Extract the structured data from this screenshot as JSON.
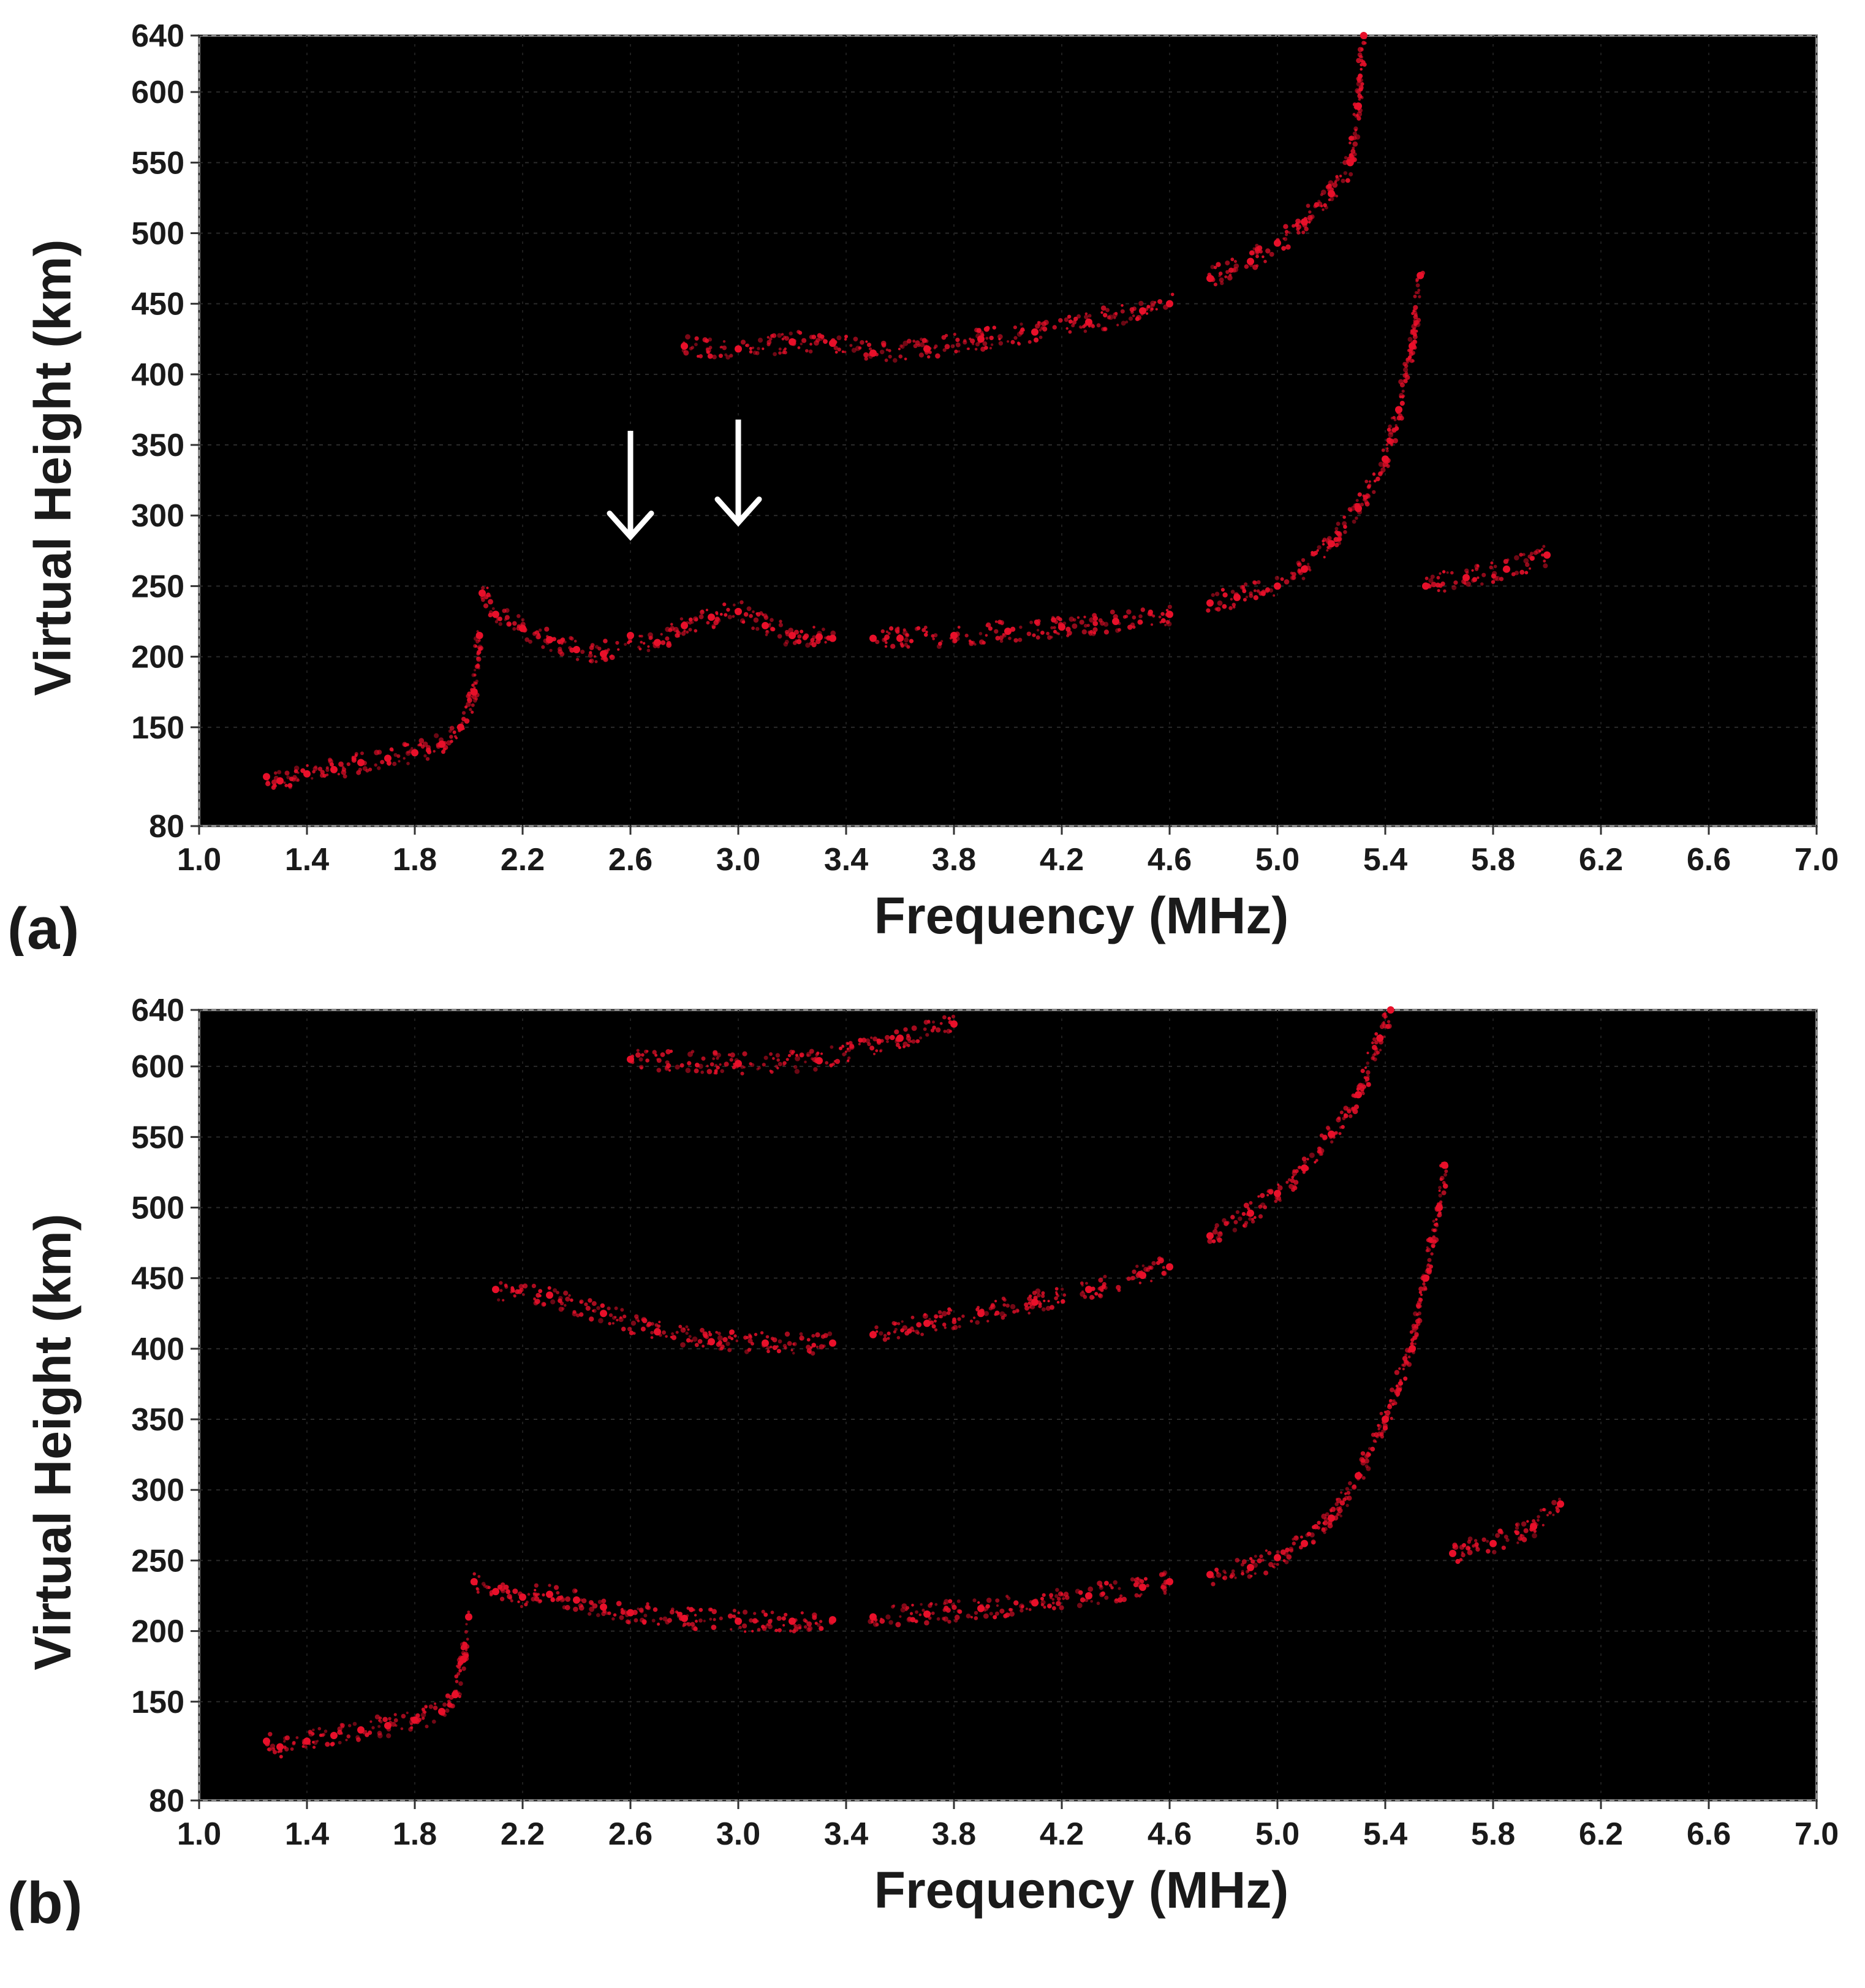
{
  "chart_data": [
    {
      "type": "scatter",
      "panel_label": "(a)",
      "xlabel": "Frequency (MHz)",
      "ylabel": "Virtual Height (km)",
      "xlim": [
        1.0,
        7.0
      ],
      "ylim": [
        80,
        640
      ],
      "xticks": [
        "1.0",
        "1.4",
        "1.8",
        "2.2",
        "2.6",
        "3.0",
        "3.4",
        "3.8",
        "4.2",
        "4.6",
        "5.0",
        "5.4",
        "5.8",
        "6.2",
        "6.6",
        "7.0"
      ],
      "yticks": [
        "80",
        "150",
        "200",
        "250",
        "300",
        "350",
        "400",
        "450",
        "500",
        "550",
        "600",
        "640"
      ],
      "background": "#000000",
      "point_color": "#e8102a",
      "grid": true,
      "annotations": [
        {
          "type": "arrow",
          "x": 2.6,
          "y_from": 360,
          "y_to": 285
        },
        {
          "type": "arrow",
          "x": 3.0,
          "y_from": 368,
          "y_to": 295
        }
      ],
      "series": [
        {
          "values": [
            [
              1.25,
              115
            ],
            [
              1.3,
              112
            ],
            [
              1.4,
              117
            ],
            [
              1.5,
              120
            ],
            [
              1.6,
              125
            ],
            [
              1.7,
              128
            ],
            [
              1.8,
              132
            ],
            [
              1.9,
              138
            ],
            [
              1.97,
              150
            ],
            [
              2.02,
              175
            ],
            [
              2.04,
              215
            ]
          ]
        },
        {
          "values": [
            [
              2.05,
              245
            ],
            [
              2.1,
              230
            ],
            [
              2.2,
              220
            ],
            [
              2.3,
              212
            ],
            [
              2.4,
              205
            ],
            [
              2.5,
              202
            ],
            [
              2.6,
              215
            ],
            [
              2.7,
              210
            ],
            [
              2.8,
              222
            ],
            [
              2.9,
              228
            ],
            [
              3.0,
              232
            ],
            [
              3.1,
              222
            ],
            [
              3.2,
              215
            ],
            [
              3.3,
              214
            ],
            [
              3.35,
              213
            ]
          ]
        },
        {
          "values": [
            [
              3.5,
              213
            ],
            [
              3.6,
              213
            ],
            [
              3.8,
              215
            ],
            [
              4.0,
              218
            ],
            [
              4.2,
              221
            ],
            [
              4.4,
              225
            ],
            [
              4.6,
              230
            ]
          ]
        },
        {
          "values": [
            [
              4.75,
              238
            ],
            [
              4.85,
              242
            ],
            [
              5.0,
              250
            ],
            [
              5.1,
              262
            ],
            [
              5.2,
              280
            ],
            [
              5.3,
              305
            ],
            [
              5.4,
              340
            ],
            [
              5.45,
              375
            ],
            [
              5.5,
              420
            ],
            [
              5.53,
              470
            ]
          ]
        },
        {
          "values": [
            [
              5.55,
              250
            ],
            [
              5.7,
              256
            ],
            [
              5.85,
              262
            ],
            [
              6.0,
              272
            ]
          ]
        },
        {
          "values": [
            [
              2.8,
              420
            ],
            [
              3.0,
              418
            ],
            [
              3.2,
              423
            ],
            [
              3.35,
              422
            ],
            [
              3.5,
              415
            ],
            [
              3.7,
              418
            ],
            [
              3.9,
              425
            ],
            [
              4.1,
              430
            ],
            [
              4.3,
              437
            ],
            [
              4.5,
              445
            ],
            [
              4.6,
              450
            ]
          ]
        },
        {
          "values": [
            [
              4.75,
              468
            ],
            [
              4.9,
              480
            ],
            [
              5.0,
              493
            ],
            [
              5.1,
              508
            ],
            [
              5.2,
              528
            ],
            [
              5.27,
              550
            ],
            [
              5.3,
              590
            ],
            [
              5.32,
              640
            ]
          ]
        }
      ]
    },
    {
      "type": "scatter",
      "panel_label": "(b)",
      "xlabel": "Frequency (MHz)",
      "ylabel": "Virtual Height (km)",
      "xlim": [
        1.0,
        7.0
      ],
      "ylim": [
        80,
        640
      ],
      "xticks": [
        "1.0",
        "1.4",
        "1.8",
        "2.2",
        "2.6",
        "3.0",
        "3.4",
        "3.8",
        "4.2",
        "4.6",
        "5.0",
        "5.4",
        "5.8",
        "6.2",
        "6.6",
        "7.0"
      ],
      "yticks": [
        "80",
        "150",
        "200",
        "250",
        "300",
        "350",
        "400",
        "450",
        "500",
        "550",
        "600",
        "640"
      ],
      "background": "#000000",
      "point_color": "#e8102a",
      "grid": true,
      "series": [
        {
          "values": [
            [
              1.25,
              122
            ],
            [
              1.3,
              118
            ],
            [
              1.4,
              122
            ],
            [
              1.5,
              126
            ],
            [
              1.6,
              130
            ],
            [
              1.7,
              133
            ],
            [
              1.8,
              137
            ],
            [
              1.9,
              143
            ],
            [
              1.95,
              155
            ],
            [
              1.98,
              180
            ],
            [
              2.0,
              210
            ]
          ]
        },
        {
          "values": [
            [
              2.02,
              235
            ],
            [
              2.1,
              228
            ],
            [
              2.2,
              224
            ],
            [
              2.3,
              226
            ],
            [
              2.4,
              222
            ],
            [
              2.5,
              217
            ],
            [
              2.6,
              213
            ],
            [
              2.8,
              209
            ],
            [
              3.0,
              207
            ],
            [
              3.2,
              207
            ],
            [
              3.35,
              208
            ]
          ]
        },
        {
          "values": [
            [
              3.5,
              210
            ],
            [
              3.7,
              212
            ],
            [
              3.9,
              216
            ],
            [
              4.1,
              220
            ],
            [
              4.3,
              225
            ],
            [
              4.5,
              231
            ],
            [
              4.6,
              235
            ]
          ]
        },
        {
          "values": [
            [
              4.75,
              240
            ],
            [
              4.9,
              245
            ],
            [
              5.0,
              252
            ],
            [
              5.1,
              262
            ],
            [
              5.2,
              280
            ],
            [
              5.3,
              310
            ],
            [
              5.4,
              350
            ],
            [
              5.5,
              400
            ],
            [
              5.55,
              450
            ],
            [
              5.6,
              500
            ],
            [
              5.62,
              530
            ]
          ]
        },
        {
          "values": [
            [
              5.65,
              255
            ],
            [
              5.8,
              262
            ],
            [
              5.95,
              274
            ],
            [
              6.05,
              290
            ]
          ]
        },
        {
          "values": [
            [
              2.1,
              442
            ],
            [
              2.3,
              438
            ],
            [
              2.5,
              425
            ],
            [
              2.7,
              412
            ],
            [
              2.9,
              405
            ],
            [
              3.1,
              404
            ],
            [
              3.35,
              404
            ]
          ]
        },
        {
          "values": [
            [
              3.5,
              410
            ],
            [
              3.7,
              418
            ],
            [
              3.9,
              425
            ],
            [
              4.1,
              433
            ],
            [
              4.3,
              442
            ],
            [
              4.5,
              452
            ],
            [
              4.6,
              458
            ]
          ]
        },
        {
          "values": [
            [
              4.75,
              480
            ],
            [
              4.9,
              496
            ],
            [
              5.0,
              510
            ],
            [
              5.1,
              528
            ],
            [
              5.2,
              552
            ],
            [
              5.3,
              580
            ],
            [
              5.38,
              620
            ],
            [
              5.42,
              640
            ]
          ]
        },
        {
          "values": [
            [
              2.6,
              605
            ],
            [
              3.0,
              602
            ],
            [
              3.3,
              604
            ],
            [
              3.6,
              620
            ],
            [
              3.8,
              630
            ]
          ]
        }
      ]
    }
  ]
}
